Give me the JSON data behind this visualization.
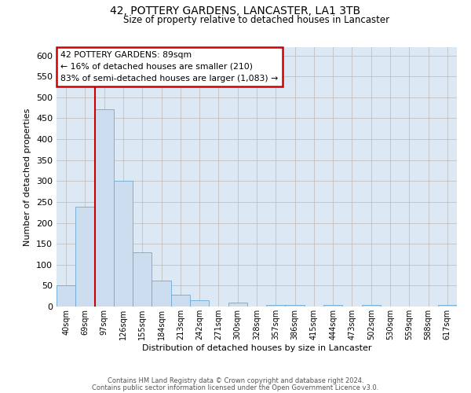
{
  "title": "42, POTTERY GARDENS, LANCASTER, LA1 3TB",
  "subtitle": "Size of property relative to detached houses in Lancaster",
  "xlabel": "Distribution of detached houses by size in Lancaster",
  "ylabel": "Number of detached properties",
  "bar_labels": [
    "40sqm",
    "69sqm",
    "97sqm",
    "126sqm",
    "155sqm",
    "184sqm",
    "213sqm",
    "242sqm",
    "271sqm",
    "300sqm",
    "328sqm",
    "357sqm",
    "386sqm",
    "415sqm",
    "444sqm",
    "473sqm",
    "502sqm",
    "530sqm",
    "559sqm",
    "588sqm",
    "617sqm"
  ],
  "bar_heights": [
    50,
    238,
    472,
    300,
    130,
    62,
    28,
    15,
    0,
    10,
    0,
    3,
    3,
    0,
    3,
    0,
    3,
    0,
    0,
    0,
    3
  ],
  "bar_color": "#ccddef",
  "bar_edge_color": "#6aaad4",
  "ylim": [
    0,
    620
  ],
  "yticks": [
    0,
    50,
    100,
    150,
    200,
    250,
    300,
    350,
    400,
    450,
    500,
    550,
    600
  ],
  "property_line_color": "#cc0000",
  "annotation_title": "42 POTTERY GARDENS: 89sqm",
  "annotation_line1": "← 16% of detached houses are smaller (210)",
  "annotation_line2": "83% of semi-detached houses are larger (1,083) →",
  "annotation_box_color": "#cc0000",
  "footer1": "Contains HM Land Registry data © Crown copyright and database right 2024.",
  "footer2": "Contains public sector information licensed under the Open Government Licence v3.0.",
  "background_color": "#ffffff",
  "plot_bg_color": "#dce9f5",
  "grid_color": "#c0c0c0"
}
